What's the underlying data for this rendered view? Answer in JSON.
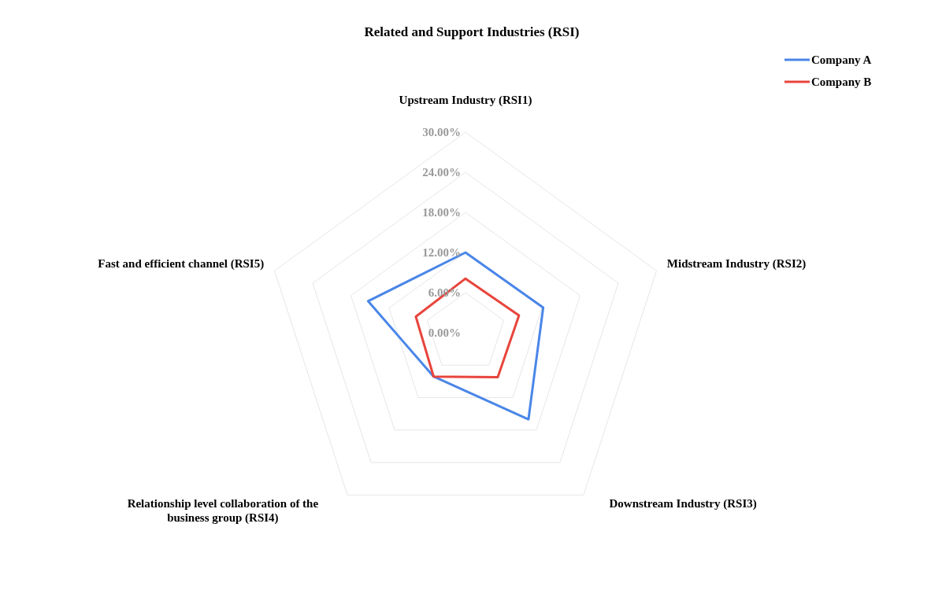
{
  "chart_data": {
    "type": "radar",
    "title": "Related and Support Industries (RSI)",
    "categories": [
      "Upstream Industry (RSI1)",
      "Midstream Industry (RSI2)",
      "Downstream Industry (RSI3)",
      "Relationship level collaboration of the business group (RSI4)",
      "Fast and efficient channel (RSI5)"
    ],
    "series": [
      {
        "name": "Company A",
        "color": "#4a86e8",
        "values": [
          12.0,
          12.2,
          16.0,
          8.1,
          15.3
        ]
      },
      {
        "name": "Company B",
        "color": "#e8453c",
        "values": [
          8.1,
          8.4,
          8.2,
          8.1,
          7.8
        ]
      }
    ],
    "ylim": [
      0,
      30
    ],
    "yticks": [
      {
        "value": 0,
        "label": "0.00%"
      },
      {
        "value": 6,
        "label": "6.00%"
      },
      {
        "value": 12,
        "label": "12.00%"
      },
      {
        "value": 18,
        "label": "18.00%"
      },
      {
        "value": 24,
        "label": "24.00%"
      },
      {
        "value": 30,
        "label": "30.00%"
      }
    ],
    "grid": true,
    "legend": "top right",
    "marker": "none",
    "line_style": "solid"
  }
}
